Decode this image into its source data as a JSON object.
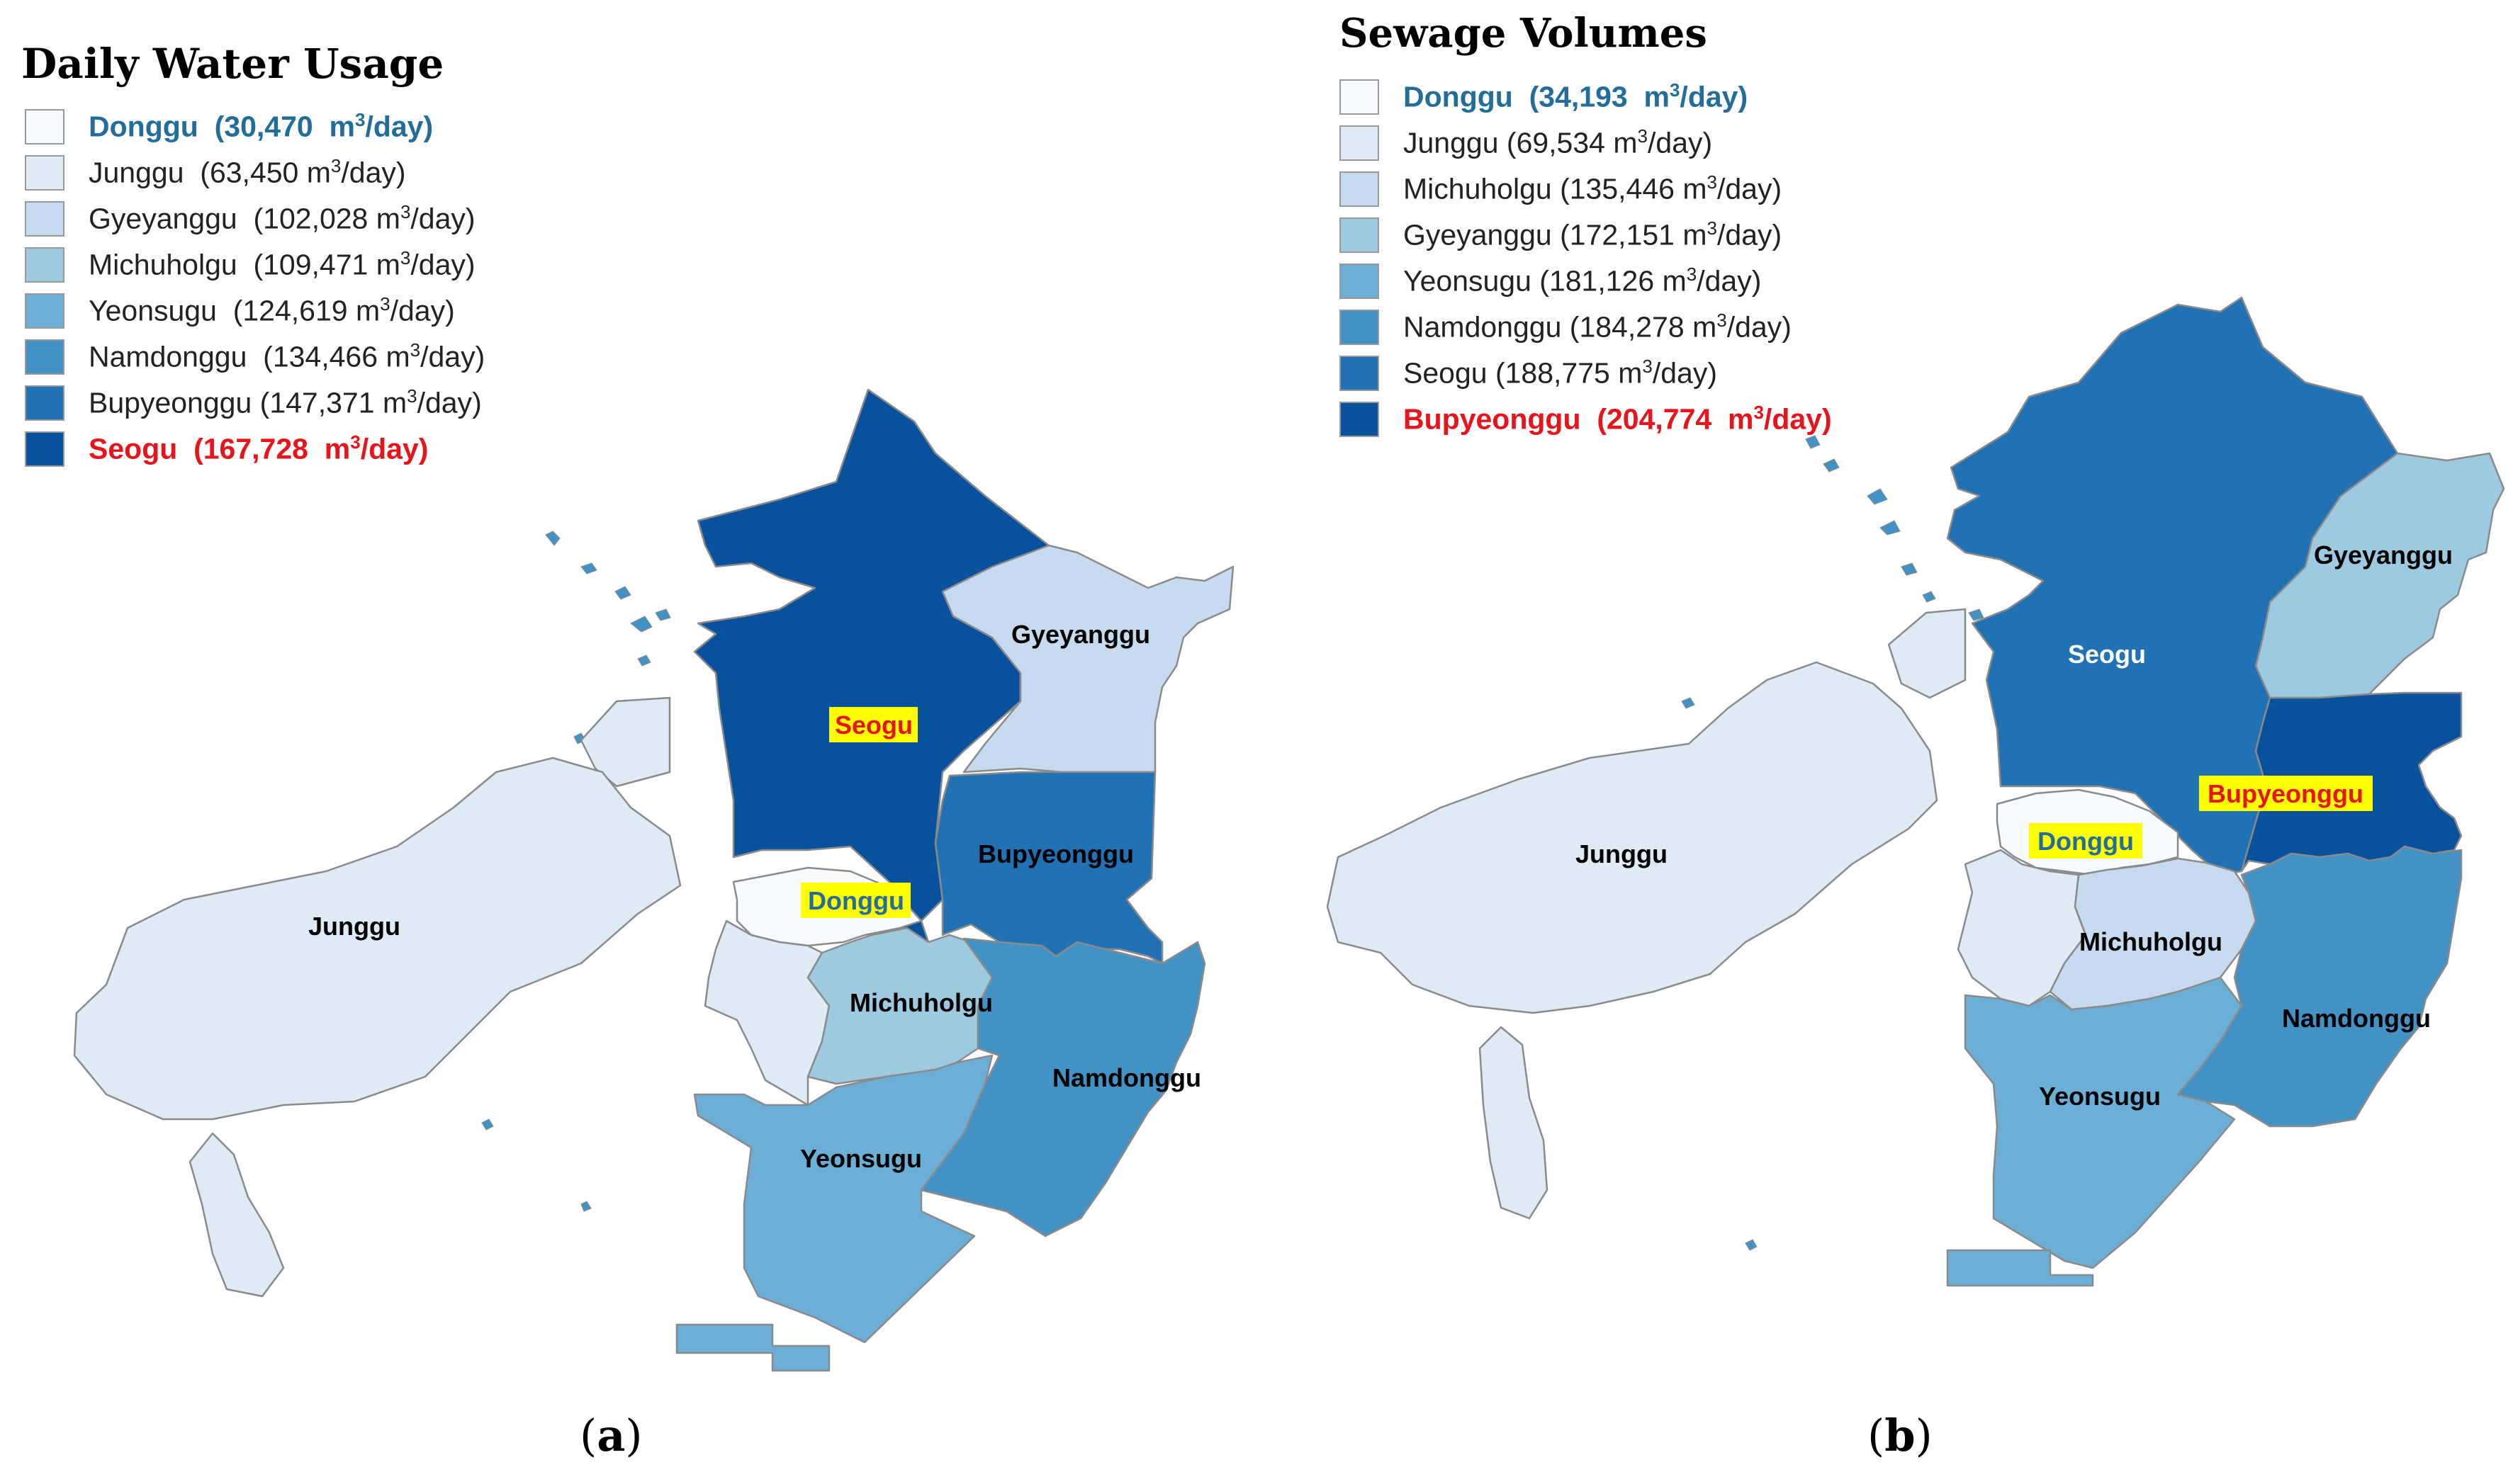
{
  "colors": {
    "scale": [
      "#f7fbff",
      "#deebf7",
      "#c6dbef",
      "#9ecae1",
      "#6baed6",
      "#4292c6",
      "#2171b5",
      "#08519c"
    ],
    "min_text": "#236d9b",
    "max_text": "#e8141b",
    "highlight": "#ffff00",
    "border": "#8a8a8a",
    "island": "#deebf7"
  },
  "panel_a": {
    "letter": "a",
    "title": "Daily Water  Usage",
    "legend": [
      {
        "district": "Donggu",
        "value": "30,470",
        "unit_base": "m",
        "unit_exp": "3",
        "unit_tail": "/day",
        "class_index": 0,
        "emphasis": "min"
      },
      {
        "district": "Junggu",
        "value": "63,450",
        "unit_base": "m",
        "unit_exp": "3",
        "unit_tail": "/day",
        "class_index": 1,
        "emphasis": ""
      },
      {
        "district": "Gyeyanggu",
        "value": "102,028",
        "unit_base": "m",
        "unit_exp": "3",
        "unit_tail": "/day",
        "class_index": 2,
        "emphasis": ""
      },
      {
        "district": "Michuholgu",
        "value": "109,471",
        "unit_base": "m",
        "unit_exp": "3",
        "unit_tail": "/day",
        "class_index": 3,
        "emphasis": ""
      },
      {
        "district": "Yeonsugu",
        "value": "124,619",
        "unit_base": "m",
        "unit_exp": "3",
        "unit_tail": "/day",
        "class_index": 4,
        "emphasis": ""
      },
      {
        "district": "Namdonggu",
        "value": "134,466",
        "unit_base": "m",
        "unit_exp": "3",
        "unit_tail": "/day",
        "class_index": 5,
        "emphasis": ""
      },
      {
        "district": "Bupyeonggu",
        "value": "147,371",
        "unit_base": "m",
        "unit_exp": "3",
        "unit_tail": "/day",
        "class_index": 6,
        "emphasis": ""
      },
      {
        "district": "Seogu",
        "value": "167,728",
        "unit_base": "m",
        "unit_exp": "3",
        "unit_tail": "/day",
        "class_index": 7,
        "emphasis": "max"
      }
    ],
    "labels": {
      "Junggu": "Junggu",
      "Seogu": "Seogu",
      "Gyeyanggu": "Gyeyanggu",
      "Bupyeonggu": "Bupyeonggu",
      "Donggu": "Donggu",
      "Michuholgu": "Michuholgu",
      "Namdonggu": "Namdonggu",
      "Yeonsugu": "Yeonsugu"
    }
  },
  "panel_b": {
    "letter": "b",
    "title": "Sewage Volumes",
    "legend": [
      {
        "district": "Donggu",
        "value": "34,193",
        "unit_base": "m",
        "unit_exp": "3",
        "unit_tail": "/day",
        "class_index": 0,
        "emphasis": "min"
      },
      {
        "district": "Junggu",
        "value": "69,534",
        "unit_base": "m",
        "unit_exp": "3",
        "unit_tail": "/day",
        "class_index": 1,
        "emphasis": ""
      },
      {
        "district": "Michuholgu",
        "value": "135,446",
        "unit_base": "m",
        "unit_exp": "3",
        "unit_tail": "/day",
        "class_index": 2,
        "emphasis": ""
      },
      {
        "district": "Gyeyanggu",
        "value": "172,151",
        "unit_base": "m",
        "unit_exp": "3",
        "unit_tail": "/day",
        "class_index": 3,
        "emphasis": ""
      },
      {
        "district": "Yeonsugu",
        "value": "181,126",
        "unit_base": "m",
        "unit_exp": "3",
        "unit_tail": "/day",
        "class_index": 4,
        "emphasis": ""
      },
      {
        "district": "Namdonggu",
        "value": "184,278",
        "unit_base": "m",
        "unit_exp": "3",
        "unit_tail": "/day",
        "class_index": 5,
        "emphasis": ""
      },
      {
        "district": "Seogu",
        "value": "188,775",
        "unit_base": "m",
        "unit_exp": "3",
        "unit_tail": "/day",
        "class_index": 6,
        "emphasis": ""
      },
      {
        "district": "Bupyeonggu",
        "value": "204,774",
        "unit_base": "m",
        "unit_exp": "3",
        "unit_tail": "/day",
        "class_index": 7,
        "emphasis": "max"
      }
    ],
    "labels": {
      "Junggu": "Junggu",
      "Seogu": "Seogu",
      "Gyeyanggu": "Gyeyanggu",
      "Bupyeonggu": "Bupyeonggu",
      "Donggu": "Donggu",
      "Michuholgu": "Michuholgu",
      "Namdonggu": "Namdonggu",
      "Yeonsugu": "Yeonsugu"
    }
  }
}
